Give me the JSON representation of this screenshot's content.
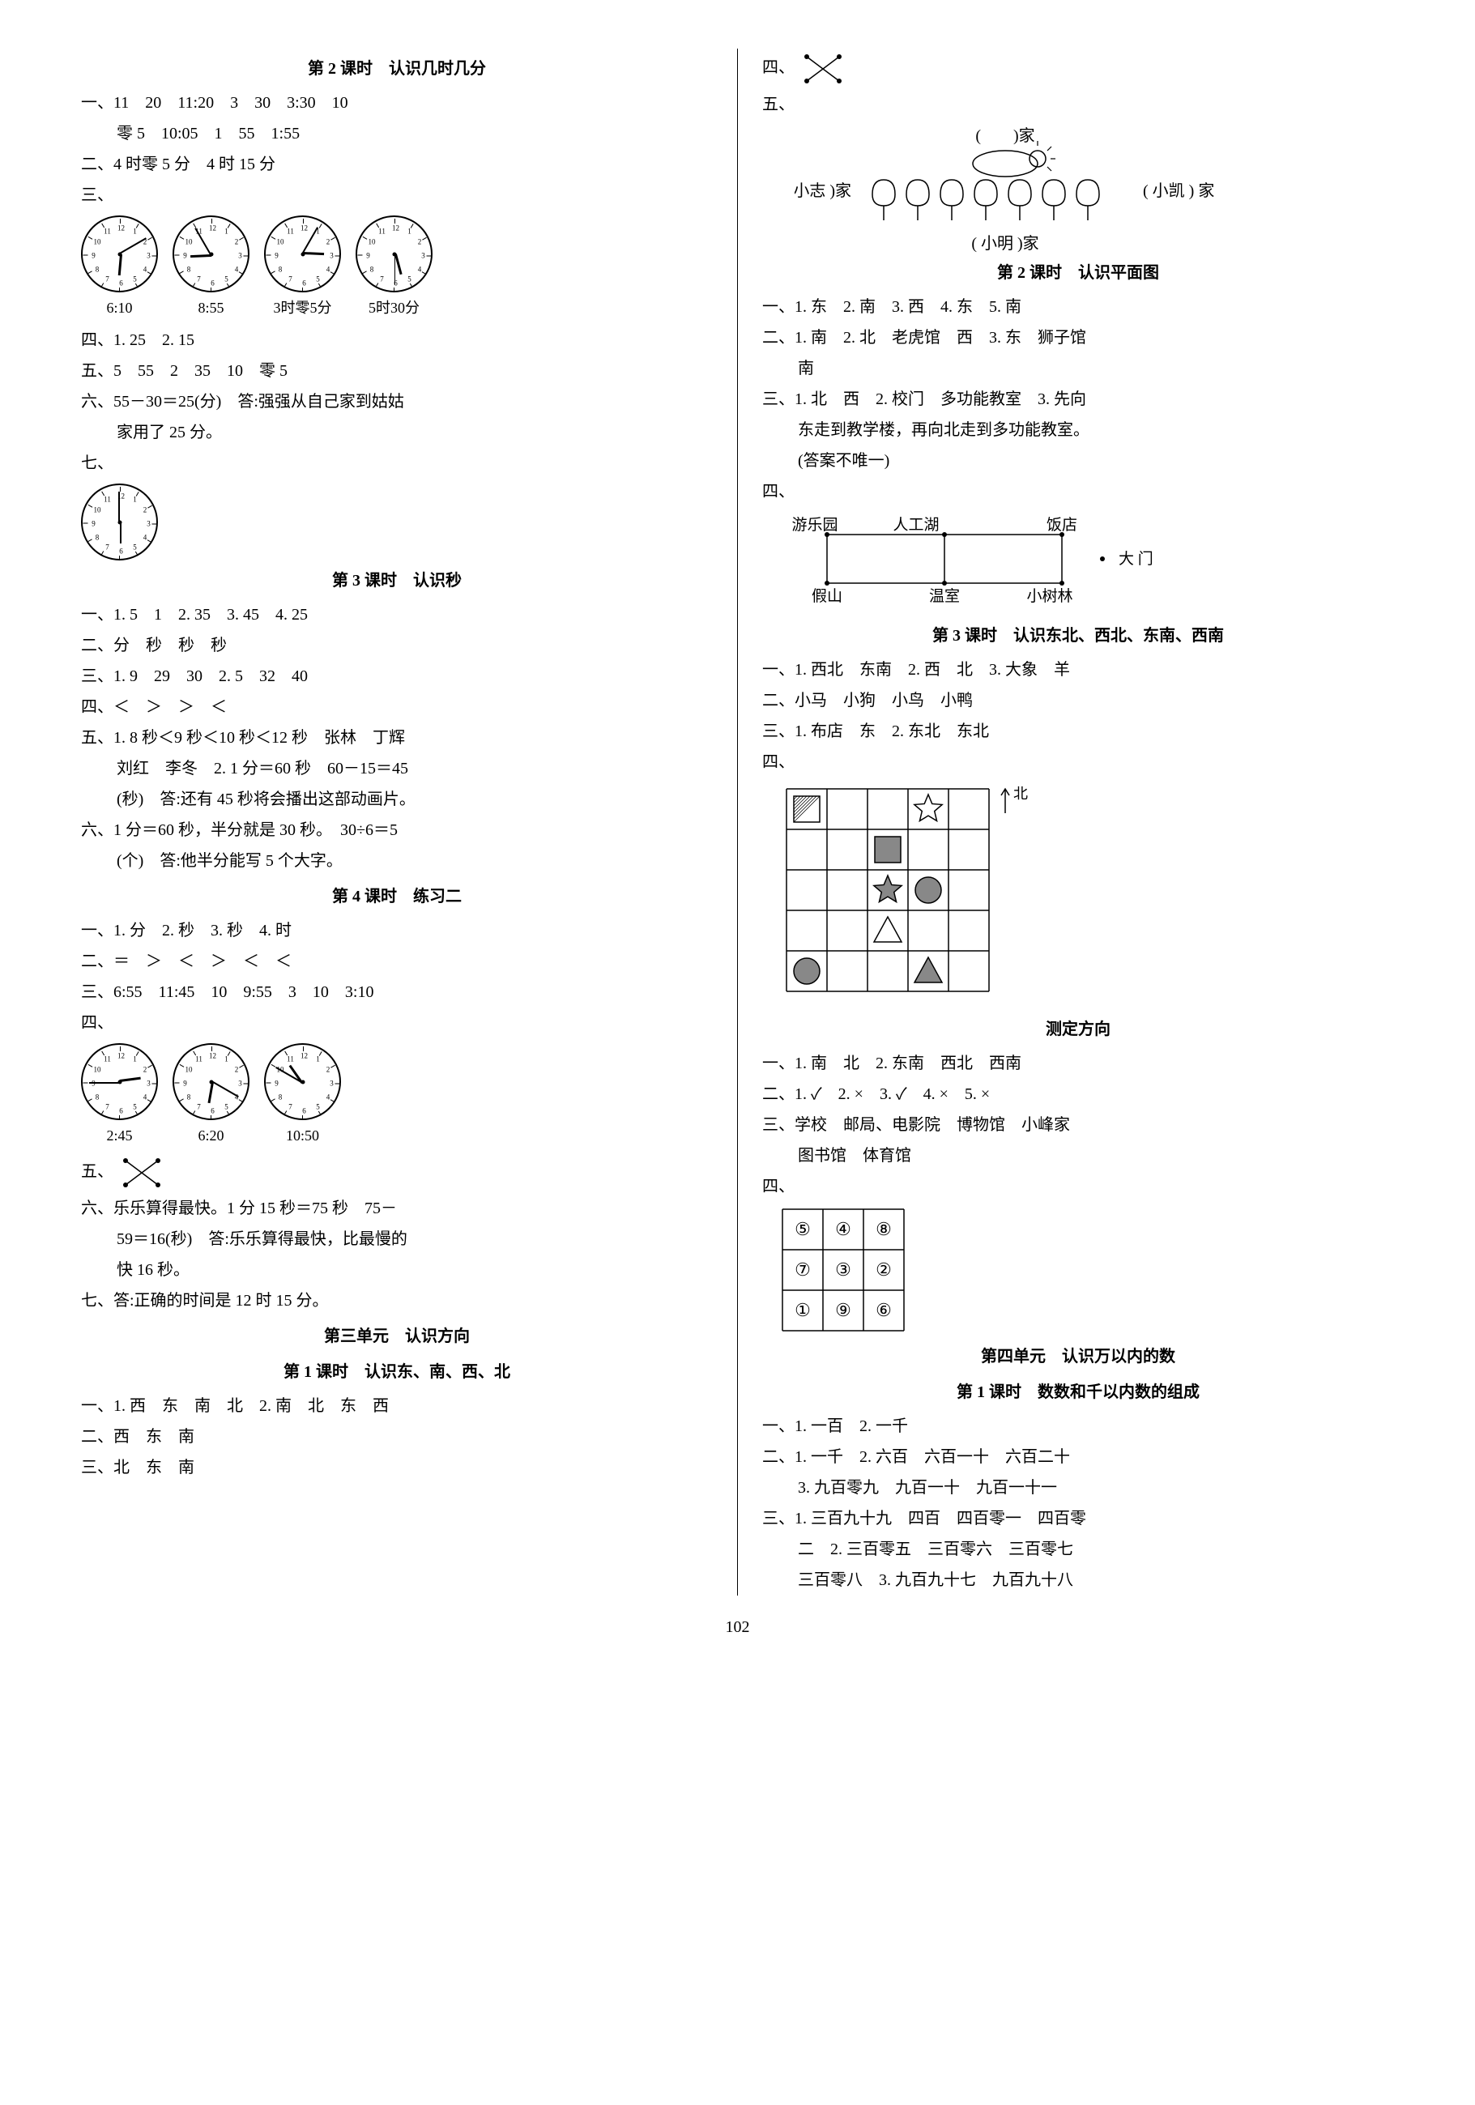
{
  "page_number": "102",
  "colors": {
    "text": "#000000",
    "bg": "#ffffff",
    "line": "#000000"
  },
  "left": {
    "s1_title": "第 2 课时　认识几时几分",
    "s1_l1": "一、11　20　11:20　3　30　3:30　10",
    "s1_l2": "零 5　10:05　1　55　1:55",
    "s1_l3": "二、4 时零 5 分　4 时 15 分",
    "s1_row3_label": "三、",
    "clocks1": [
      {
        "h": 6,
        "m": 10,
        "label": "6:10"
      },
      {
        "h": 8,
        "m": 55,
        "label": "8:55"
      },
      {
        "h": 3,
        "m": 5,
        "label": "3时零5分"
      },
      {
        "h": 5,
        "m": 30,
        "label": "5时30分"
      }
    ],
    "s1_l4": "四、1. 25　2. 15",
    "s1_l5": "五、5　55　2　35　10　零 5",
    "s1_l6": "六、55－30＝25(分)　答:强强从自己家到姑姑",
    "s1_l6b": "家用了 25 分。",
    "s1_row7_label": "七、",
    "clock7": {
      "h": 6,
      "m": 0,
      "label": ""
    },
    "s2_title": "第 3 课时　认识秒",
    "s2_l1": "一、1. 5　1　2. 35　3. 45　4. 25",
    "s2_l2": "二、分　秒　秒　秒",
    "s2_l3": "三、1. 9　29　30　2. 5　32　40",
    "s2_l4": "四、＜　＞　＞　＜",
    "s2_l5": "五、1. 8 秒＜9 秒＜10 秒＜12 秒　张林　丁辉",
    "s2_l5b": "刘红　李冬　2. 1 分＝60 秒　60－15＝45",
    "s2_l5c": "(秒)　答:还有 45 秒将会播出这部动画片。",
    "s2_l6": "六、1 分＝60 秒，半分就是 30 秒。　30÷6＝5",
    "s2_l6b": "(个)　答:他半分能写 5 个大字。",
    "s3_title": "第 4 课时　练习二",
    "s3_l1": "一、1. 分　2. 秒　3. 秒　4. 时",
    "s3_l2": "二、＝　＞　＜　＞　＜　＜",
    "s3_l3": "三、6:55　11:45　10　9:55　3　10　3:10",
    "s3_row4_label": "四、",
    "clocks2": [
      {
        "h": 2,
        "m": 45,
        "label": "2:45"
      },
      {
        "h": 6,
        "m": 20,
        "label": "6:20"
      },
      {
        "h": 10,
        "m": 50,
        "label": "10:50"
      }
    ],
    "s3_row5_label": "五、",
    "s3_l6": "六、乐乐算得最快。1 分 15 秒＝75 秒　75－",
    "s3_l6b": "59＝16(秒)　答:乐乐算得最快，比最慢的",
    "s3_l6c": "快 16 秒。",
    "s3_l7": "七、答:正确的时间是 12 时 15 分。",
    "s4_title": "第三单元　认识方向",
    "s4_sub": "第 1 课时　认识东、南、西、北",
    "s4_l1": "一、1. 西　东　南　北　2. 南　北　东　西",
    "s4_l2": "二、西　东　南",
    "s4_l3": "三、北　东　南"
  },
  "right": {
    "r_row4_label": "四、",
    "r_row5_label": "五、",
    "house": {
      "top": "(　　)家",
      "left": "( 小志 )家",
      "right": "( 小凯 ) 家",
      "bottom": "( 小明 )家"
    },
    "r2_title": "第 2 课时　认识平面图",
    "r2_l1": "一、1. 东　2. 南　3. 西　4. 东　5. 南",
    "r2_l2": "二、1. 南　2. 北　老虎馆　西　3. 东　狮子馆",
    "r2_l2b": "南",
    "r2_l3": "三、1. 北　西　2. 校门　多功能教室　3. 先向",
    "r2_l3b": "东走到教学楼，再向北走到多功能教室。",
    "r2_l3c": "(答案不唯一)",
    "r2_row4_label": "四、",
    "map": {
      "top_left": "游乐园",
      "top_mid": "人工湖",
      "top_right": "饭店",
      "right_label": "大 门",
      "bot_left": "假山",
      "bot_mid": "温室",
      "bot_right": "小树林"
    },
    "r3_title": "第 3 课时　认识东北、西北、东南、西南",
    "r3_l1": "一、1. 西北　东南　2. 西　北　3. 大象　羊",
    "r3_l2": "二、小马　小狗　小鸟　小鸭",
    "r3_l3": "三、1. 布店　东　2. 东北　东北",
    "r3_row4_label": "四、",
    "grid": {
      "rows": 5,
      "cols": 5,
      "north": "北",
      "shapes": [
        {
          "type": "hatched-square",
          "r": 0,
          "c": 0
        },
        {
          "type": "star",
          "r": 0,
          "c": 3
        },
        {
          "type": "square",
          "r": 1,
          "c": 2,
          "fill": "#888888"
        },
        {
          "type": "star",
          "r": 2,
          "c": 2,
          "fill": "#888888"
        },
        {
          "type": "circle",
          "r": 2,
          "c": 3,
          "fill": "#888888"
        },
        {
          "type": "triangle",
          "r": 3,
          "c": 2
        },
        {
          "type": "circle",
          "r": 4,
          "c": 0,
          "fill": "#888888"
        },
        {
          "type": "triangle",
          "r": 4,
          "c": 3,
          "fill": "#888888"
        }
      ]
    },
    "r4_title": "测定方向",
    "r4_l1": "一、1. 南　北　2. 东南　西北　西南",
    "r4_l2": "二、1. ✓　2. ×　3. ✓　4. ×　5. ×",
    "r4_l3": "三、学校　邮局、电影院　博物馆　小峰家",
    "r4_l3b": "图书馆　体育馆",
    "r4_row4_label": "四、",
    "table": {
      "cells": [
        [
          "⑤",
          "④",
          "⑧"
        ],
        [
          "⑦",
          "③",
          "②"
        ],
        [
          "①",
          "⑨",
          "⑥"
        ]
      ]
    },
    "r5_title": "第四单元　认识万以内的数",
    "r5_sub": "第 1 课时　数数和千以内数的组成",
    "r5_l1": "一、1. 一百　2. 一千",
    "r5_l2": "二、1. 一千　2. 六百　六百一十　六百二十",
    "r5_l2b": "3. 九百零九　九百一十　九百一十一",
    "r5_l3": "三、1. 三百九十九　四百　四百零一　四百零",
    "r5_l3b": "二　2. 三百零五　三百零六　三百零七",
    "r5_l3c": "三百零八　3. 九百九十七　九百九十八"
  }
}
